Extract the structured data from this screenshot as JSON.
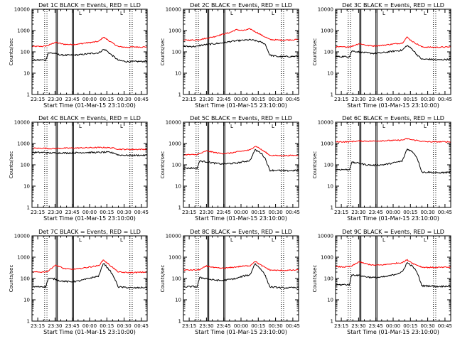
{
  "figure": {
    "panel_titles": [
      "Det 1C BLACK = Events, RED = LLD",
      "Det 2C BLACK = Events, RED = LLD",
      "Det 3C BLACK = Events, RED = LLD",
      "Det 4C BLACK = Events, RED = LLD",
      "Det 5C BLACK = Events, RED = LLD",
      "Det 6C BLACK = Events, RED = LLD",
      "Det 7C BLACK = Events, RED = LLD",
      "Det 8C BLACK = Events, RED = LLD",
      "Det 9C BLACK = Events, RED = LLD"
    ],
    "xlabel": "Start Time (01-Mar-15 23:10:00)",
    "ylabel": "Counts/sec",
    "x_ticks": [
      "23:15",
      "23:30",
      "23:45",
      "00:00",
      "00:15",
      "00:30",
      "00:45"
    ],
    "y_ticks": [
      "1",
      "10",
      "100",
      "1000",
      "10000"
    ],
    "corner_marks": [
      "L",
      "L"
    ],
    "colors": {
      "events": "#000000",
      "lld": "#ff0000",
      "axes": "#000000"
    }
  },
  "chart_data": {
    "type": "line",
    "x_unit": "minutes after 23:10 (01-Mar-15)",
    "xlim": [
      0,
      100
    ],
    "ylim": [
      1,
      10000
    ],
    "y_scale": "log",
    "grid": false,
    "legend": "none",
    "x_tick_values": [
      5,
      20,
      35,
      50,
      65,
      80,
      95
    ],
    "x_breakpoints": [
      0,
      9,
      12,
      14,
      20,
      23,
      27,
      33,
      40,
      46,
      52,
      58,
      62,
      64,
      66,
      68,
      71,
      75,
      82,
      88,
      100
    ],
    "marker_lines": {
      "solid": [
        21,
        22,
        35,
        36
      ],
      "dotted": [
        11,
        13,
        85,
        87
      ]
    },
    "panels": [
      {
        "events": [
          40,
          42,
          40,
          90,
          85,
          75,
          70,
          70,
          72,
          78,
          85,
          90,
          130,
          120,
          100,
          80,
          60,
          40,
          35,
          35,
          36
        ],
        "lld": [
          180,
          180,
          190,
          200,
          280,
          260,
          230,
          220,
          230,
          260,
          280,
          310,
          500,
          420,
          360,
          300,
          240,
          175,
          165,
          170,
          170
        ]
      },
      {
        "events": [
          180,
          180,
          180,
          200,
          220,
          230,
          240,
          260,
          300,
          330,
          350,
          370,
          340,
          320,
          300,
          280,
          230,
          70,
          60,
          60,
          62
        ],
        "lld": [
          350,
          360,
          370,
          380,
          430,
          470,
          520,
          650,
          800,
          1100,
          1000,
          1200,
          900,
          800,
          700,
          600,
          500,
          380,
          360,
          360,
          380
        ]
      },
      {
        "events": [
          60,
          60,
          60,
          110,
          100,
          95,
          90,
          85,
          90,
          100,
          110,
          120,
          200,
          170,
          140,
          110,
          70,
          45,
          45,
          42,
          45
        ],
        "lld": [
          170,
          170,
          175,
          180,
          240,
          230,
          200,
          190,
          200,
          220,
          240,
          260,
          500,
          400,
          330,
          280,
          230,
          170,
          165,
          165,
          170
        ]
      },
      {
        "events": [
          380,
          380,
          380,
          360,
          360,
          360,
          360,
          360,
          370,
          380,
          380,
          380,
          390,
          390,
          390,
          380,
          360,
          290,
          280,
          280,
          280
        ],
        "lld": [
          600,
          600,
          600,
          580,
          580,
          590,
          600,
          610,
          620,
          630,
          640,
          650,
          650,
          650,
          640,
          630,
          610,
          540,
          530,
          530,
          540
        ]
      },
      {
        "events": [
          70,
          70,
          70,
          150,
          140,
          130,
          120,
          110,
          115,
          120,
          140,
          160,
          500,
          450,
          400,
          330,
          200,
          55,
          55,
          52,
          55
        ],
        "lld": [
          300,
          300,
          310,
          330,
          450,
          420,
          380,
          340,
          350,
          400,
          450,
          500,
          750,
          700,
          600,
          500,
          400,
          280,
          270,
          270,
          280
        ]
      },
      {
        "events": [
          60,
          60,
          60,
          130,
          120,
          110,
          100,
          95,
          100,
          110,
          130,
          150,
          550,
          500,
          430,
          360,
          200,
          45,
          45,
          42,
          45
        ],
        "lld": [
          1200,
          1200,
          1200,
          1250,
          1300,
          1300,
          1300,
          1300,
          1350,
          1380,
          1400,
          1450,
          1700,
          1600,
          1500,
          1450,
          1400,
          1250,
          1200,
          1200,
          1200
        ]
      },
      {
        "events": [
          40,
          42,
          40,
          100,
          95,
          80,
          75,
          70,
          75,
          90,
          110,
          130,
          550,
          400,
          300,
          220,
          120,
          40,
          38,
          36,
          38
        ],
        "lld": [
          200,
          200,
          210,
          220,
          420,
          380,
          300,
          270,
          280,
          320,
          360,
          400,
          750,
          600,
          500,
          400,
          300,
          200,
          190,
          190,
          200
        ]
      },
      {
        "events": [
          40,
          42,
          40,
          110,
          100,
          90,
          85,
          80,
          90,
          100,
          130,
          150,
          500,
          400,
          320,
          250,
          140,
          40,
          38,
          36,
          38
        ],
        "lld": [
          250,
          250,
          250,
          260,
          380,
          360,
          320,
          300,
          320,
          350,
          380,
          400,
          650,
          550,
          470,
          400,
          330,
          250,
          240,
          240,
          250
        ]
      },
      {
        "events": [
          50,
          52,
          50,
          150,
          140,
          130,
          120,
          110,
          115,
          130,
          160,
          200,
          550,
          480,
          400,
          320,
          180,
          45,
          45,
          42,
          45
        ],
        "lld": [
          350,
          350,
          360,
          380,
          600,
          550,
          480,
          420,
          430,
          470,
          520,
          560,
          750,
          650,
          560,
          480,
          420,
          340,
          330,
          330,
          340
        ]
      }
    ]
  }
}
